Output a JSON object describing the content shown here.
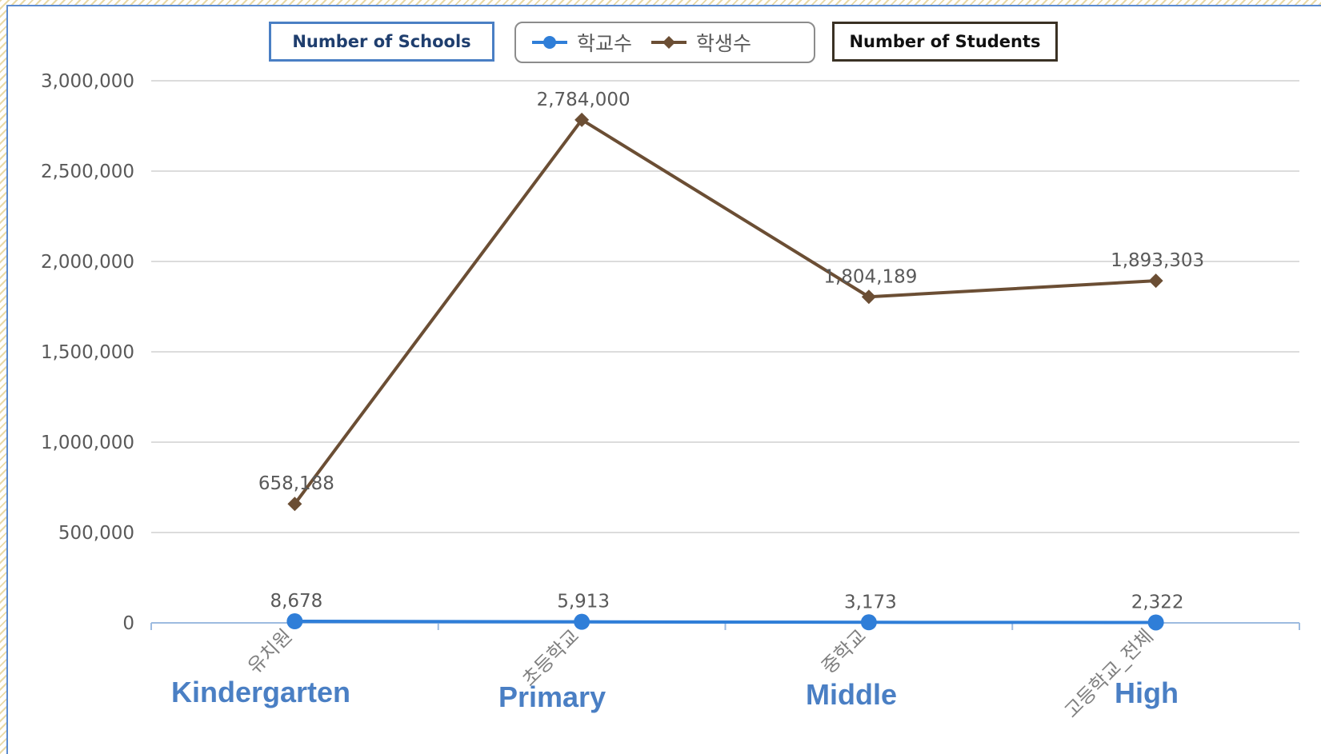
{
  "labels": {
    "schools_box": "Number of Schools",
    "students_box": "Number of Students"
  },
  "english_categories": [
    "Kindergarten",
    "Primary",
    "Middle",
    "High"
  ],
  "colors": {
    "schools": "#2f7ed8",
    "students": "#6b4e34",
    "grid": "#d0d0d0",
    "axis_text": "#595959",
    "english_labels": "#4a7fc4"
  },
  "chart_data": {
    "type": "line",
    "categories": [
      "유치원",
      "초등학교",
      "중학교",
      "고등학교_전체"
    ],
    "series": [
      {
        "name": "학교수",
        "values": [
          8678,
          5913,
          3173,
          2322
        ],
        "labels": [
          "8,678",
          "5,913",
          "3,173",
          "2,322"
        ],
        "marker": "circle"
      },
      {
        "name": "학생수",
        "values": [
          658188,
          2784000,
          1804189,
          1893303
        ],
        "labels": [
          "658,188",
          "2,784,000",
          "1,804,189",
          "1,893,303"
        ],
        "marker": "diamond"
      }
    ],
    "ylim": [
      0,
      3000000
    ],
    "yticks": [
      "0",
      "500,000",
      "1,000,000",
      "1,500,000",
      "2,000,000",
      "2,500,000",
      "3,000,000"
    ],
    "grid": true,
    "legend": "top-center"
  }
}
